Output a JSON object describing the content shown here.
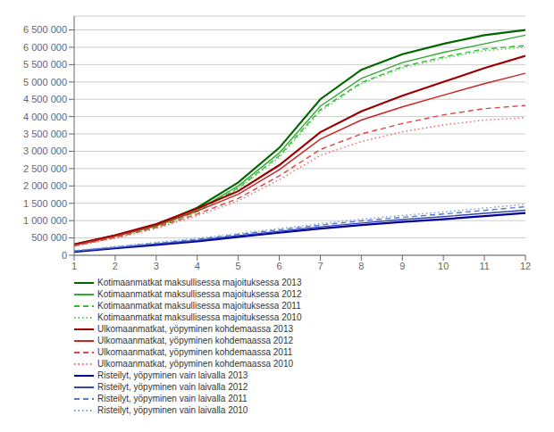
{
  "chart_data": {
    "type": "line",
    "x": [
      1,
      2,
      3,
      4,
      5,
      6,
      7,
      8,
      9,
      10,
      11,
      12
    ],
    "xlim": [
      1,
      12
    ],
    "xticks": [
      1,
      2,
      3,
      4,
      5,
      6,
      7,
      8,
      9,
      10,
      11,
      12
    ],
    "ylim": [
      0,
      6900000
    ],
    "yticks": [
      0,
      {
        "value": 500000,
        "label": "500 000"
      },
      {
        "value": 1000000,
        "label": "1 000 000"
      },
      {
        "value": 1500000,
        "label": "1 500 000"
      },
      {
        "value": 2000000,
        "label": "2 000 000"
      },
      {
        "value": 2500000,
        "label": "2 500 000"
      },
      {
        "value": 3000000,
        "label": "3 000 000"
      },
      {
        "value": 3500000,
        "label": "3 500 000"
      },
      {
        "value": 4000000,
        "label": "4 000 000"
      },
      {
        "value": 4500000,
        "label": "4 500 000"
      },
      {
        "value": 5000000,
        "label": "5 000 000"
      },
      {
        "value": 5500000,
        "label": "5 500 000"
      },
      {
        "value": 6000000,
        "label": "6 000 000"
      },
      {
        "value": 6500000,
        "label": "6 500 000"
      }
    ],
    "grid": "y",
    "legend": "bottom",
    "series": [
      {
        "name": "Kotimaanmatkat maksullisessa majoituksessa 2013",
        "color": "#006600",
        "line_style": "solid",
        "values": [
          310000,
          570000,
          870000,
          1370000,
          2100000,
          3100000,
          4500000,
          5350000,
          5800000,
          6100000,
          6350000,
          6500000
        ]
      },
      {
        "name": "Kotimaanmatkat maksullisessa majoituksessa 2012",
        "color": "#33aa33",
        "line_style": "solid",
        "values": [
          290000,
          550000,
          840000,
          1300000,
          2000000,
          2950000,
          4300000,
          5100000,
          5560000,
          5850000,
          6100000,
          6350000
        ]
      },
      {
        "name": "Kotimaanmatkat maksullisessa majoituksessa 2011",
        "color": "#33bb33",
        "line_style": "dashed",
        "values": [
          280000,
          530000,
          820000,
          1260000,
          1940000,
          2870000,
          4200000,
          4980000,
          5440000,
          5720000,
          5950000,
          6050000
        ]
      },
      {
        "name": "Kotimaanmatkat maksullisessa majoituksessa 2010",
        "color": "#55cc55",
        "line_style": "dotted",
        "values": [
          270000,
          510000,
          800000,
          1240000,
          1910000,
          2820000,
          4150000,
          4950000,
          5400000,
          5680000,
          5900000,
          6000000
        ]
      },
      {
        "name": "Ulkomaanmatkat, yöpyminen kohdemaassa 2013",
        "color": "#990000",
        "line_style": "solid",
        "values": [
          310000,
          580000,
          900000,
          1350000,
          1850000,
          2600000,
          3550000,
          4150000,
          4600000,
          5000000,
          5400000,
          5750000
        ]
      },
      {
        "name": "Ulkomaanmatkat, yöpyminen kohdemaassa 2012",
        "color": "#cc2222",
        "line_style": "solid",
        "values": [
          290000,
          550000,
          860000,
          1280000,
          1760000,
          2470000,
          3350000,
          3900000,
          4280000,
          4620000,
          4950000,
          5250000
        ]
      },
      {
        "name": "Ulkomaanmatkat, yöpyminen kohdemaassa 2011",
        "color": "#dd4444",
        "line_style": "dashed",
        "values": [
          270000,
          510000,
          800000,
          1190000,
          1640000,
          2290000,
          3050000,
          3500000,
          3800000,
          4050000,
          4230000,
          4320000
        ]
      },
      {
        "name": "Ulkomaanmatkat, yöpyminen kohdemaassa 2010",
        "color": "#ee6666",
        "line_style": "dotted",
        "values": [
          260000,
          490000,
          770000,
          1140000,
          1570000,
          2180000,
          2880000,
          3280000,
          3560000,
          3760000,
          3900000,
          3970000
        ]
      },
      {
        "name": "Risteilyt, yöpyminen vain laivalla 2013",
        "color": "#000099",
        "line_style": "solid",
        "values": [
          100000,
          200000,
          300000,
          400000,
          530000,
          650000,
          770000,
          870000,
          960000,
          1040000,
          1130000,
          1220000
        ]
      },
      {
        "name": "Risteilyt, yöpyminen vain laivalla 2012",
        "color": "#3344bb",
        "line_style": "solid",
        "values": [
          115000,
          220000,
          325000,
          430000,
          565000,
          690000,
          820000,
          930000,
          1030000,
          1115000,
          1210000,
          1300000
        ]
      },
      {
        "name": "Risteilyt, yöpyminen vain laivalla 2011",
        "color": "#5577cc",
        "line_style": "dashed",
        "values": [
          125000,
          235000,
          350000,
          460000,
          600000,
          735000,
          870000,
          990000,
          1095000,
          1190000,
          1295000,
          1400000
        ]
      },
      {
        "name": "Risteilyt, yöpyminen vain laivalla 2010",
        "color": "#7799dd",
        "line_style": "dotted",
        "values": [
          135000,
          255000,
          375000,
          490000,
          630000,
          770000,
          910000,
          1040000,
          1150000,
          1250000,
          1360000,
          1470000
        ]
      }
    ]
  }
}
